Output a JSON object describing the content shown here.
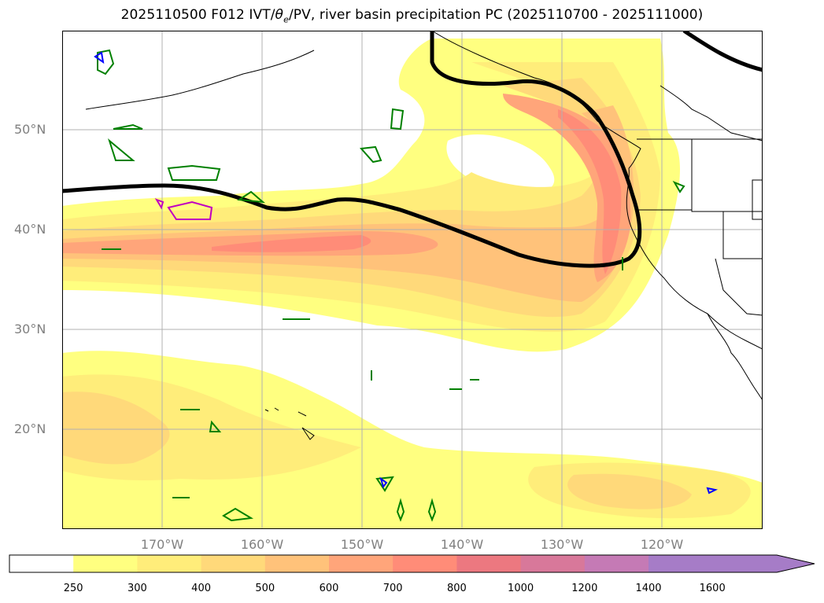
{
  "title": "2025110500 F012 IVT/θe/PV, river basin precipitation PC (2025110700 - 2025111000)",
  "title_parts": {
    "prefix": "2025110500 F012 IVT/",
    "theta": "θ",
    "sub": "e",
    "suffix": "/PV, river basin precipitation PC (2025110700 - 2025111000)"
  },
  "map": {
    "projection": "PlateCarree",
    "lon_range": [
      -180,
      -110
    ],
    "lat_range": [
      10,
      60
    ],
    "gridlines": true,
    "lat_labels": [
      {
        "lat": 50,
        "label": "50°N"
      },
      {
        "lat": 40,
        "label": "40°N"
      },
      {
        "lat": 30,
        "label": "30°N"
      },
      {
        "lat": 20,
        "label": "20°N"
      }
    ],
    "lon_labels": [
      {
        "lon": -170,
        "label": "170°W"
      },
      {
        "lon": -160,
        "label": "160°W"
      },
      {
        "lon": -150,
        "label": "150°W"
      },
      {
        "lon": -140,
        "label": "140°W"
      },
      {
        "lon": -130,
        "label": "130°W"
      },
      {
        "lon": -120,
        "label": "120°W"
      }
    ]
  },
  "colorbar": {
    "ticks": [
      "250",
      "300",
      "400",
      "500",
      "600",
      "700",
      "800",
      "1000",
      "1200",
      "1400",
      "1600"
    ],
    "colors": [
      "#ffff80",
      "#ffed7a",
      "#ffd97a",
      "#ffc27a",
      "#ffa57a",
      "#ff8c78",
      "#ec7880",
      "#d8789a",
      "#c57ab5",
      "#a67cc7"
    ],
    "extend": "max",
    "below_color": "#ffffff"
  },
  "colors": {
    "ivt_low": "#ffff80",
    "ivt_mid": "#ffd97a",
    "ivt_high": "#ff8c78",
    "theta_contour": "#000000",
    "pv_green": "#008000",
    "pv_magenta": "#c000c0",
    "pv_blue": "#0000ff",
    "grid": "#b0b0b0",
    "label": "#808080"
  }
}
